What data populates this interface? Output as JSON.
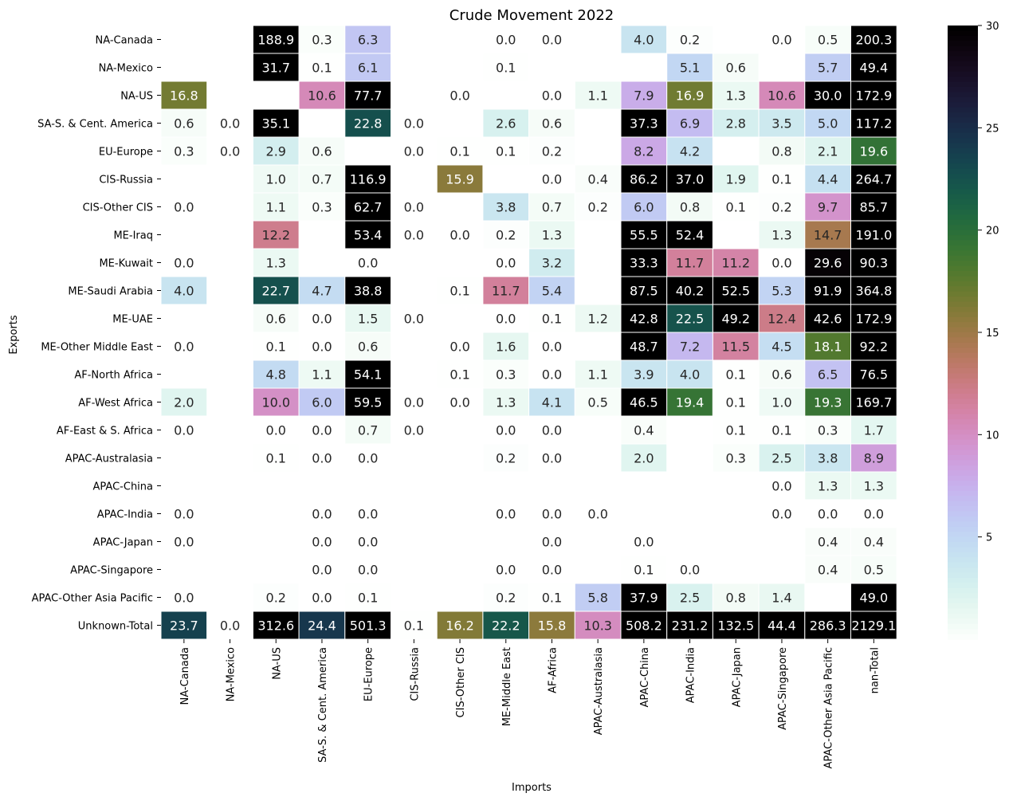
{
  "chart_data": {
    "type": "heatmap",
    "title": "Crude Movement 2022",
    "xlabel": "Imports",
    "ylabel": "Exports",
    "columns": [
      "NA-Canada",
      "NA-Mexico",
      "NA-US",
      "SA-S. & Cent. America",
      "EU-Europe",
      "CIS-Russia",
      "CIS-Other CIS",
      "ME-Middle East",
      "AF-Africa",
      "APAC-Australasia",
      "APAC-China",
      "APAC-India",
      "APAC-Japan",
      "APAC-Singapore",
      "APAC-Other Asia Pacific",
      "nan-Total"
    ],
    "rows": [
      "NA-Canada",
      "NA-Mexico",
      "NA-US",
      "SA-S. & Cent. America",
      "EU-Europe",
      "CIS-Russia",
      "CIS-Other CIS",
      "ME-Iraq",
      "ME-Kuwait",
      "ME-Saudi Arabia",
      "ME-UAE",
      "ME-Other Middle East",
      "AF-North Africa",
      "AF-West Africa",
      "AF-East & S. Africa",
      "APAC-Australasia",
      "APAC-China",
      "APAC-India",
      "APAC-Japan",
      "APAC-Singapore",
      "APAC-Other Asia Pacific",
      "Unknown-Total"
    ],
    "values": [
      [
        null,
        null,
        188.9,
        0.3,
        6.3,
        null,
        null,
        0.0,
        0.0,
        null,
        4.0,
        0.2,
        null,
        0.0,
        0.5,
        200.3
      ],
      [
        null,
        null,
        31.7,
        0.1,
        6.1,
        null,
        null,
        0.1,
        null,
        null,
        null,
        5.1,
        0.6,
        null,
        5.7,
        49.4
      ],
      [
        16.8,
        null,
        null,
        10.6,
        77.7,
        null,
        0.0,
        null,
        0.0,
        1.1,
        7.9,
        16.9,
        1.3,
        10.6,
        30.0,
        172.9
      ],
      [
        0.6,
        0.0,
        35.1,
        null,
        22.8,
        0.0,
        null,
        2.6,
        0.6,
        null,
        37.3,
        6.9,
        2.8,
        3.5,
        5.0,
        117.2
      ],
      [
        0.3,
        0.0,
        2.9,
        0.6,
        null,
        0.0,
        0.1,
        0.1,
        0.2,
        null,
        8.2,
        4.2,
        null,
        0.8,
        2.1,
        19.6
      ],
      [
        null,
        null,
        1.0,
        0.7,
        116.9,
        null,
        15.9,
        null,
        0.0,
        0.4,
        86.2,
        37.0,
        1.9,
        0.1,
        4.4,
        264.7
      ],
      [
        0.0,
        null,
        1.1,
        0.3,
        62.7,
        0.0,
        null,
        3.8,
        0.7,
        0.2,
        6.0,
        0.8,
        0.1,
        0.2,
        9.7,
        85.7
      ],
      [
        null,
        null,
        12.2,
        null,
        53.4,
        0.0,
        0.0,
        0.2,
        1.3,
        null,
        55.5,
        52.4,
        null,
        1.3,
        14.7,
        191.0
      ],
      [
        0.0,
        null,
        1.3,
        null,
        0.0,
        null,
        null,
        0.0,
        3.2,
        null,
        33.3,
        11.7,
        11.2,
        0.0,
        29.6,
        90.3
      ],
      [
        4.0,
        null,
        22.7,
        4.7,
        38.8,
        null,
        0.1,
        11.7,
        5.4,
        null,
        87.5,
        40.2,
        52.5,
        5.3,
        91.9,
        364.8
      ],
      [
        null,
        null,
        0.6,
        0.0,
        1.5,
        0.0,
        null,
        0.0,
        0.1,
        1.2,
        42.8,
        22.5,
        49.2,
        12.4,
        42.6,
        172.9
      ],
      [
        0.0,
        null,
        0.1,
        0.0,
        0.6,
        null,
        0.0,
        1.6,
        0.0,
        null,
        48.7,
        7.2,
        11.5,
        4.5,
        18.1,
        92.2
      ],
      [
        null,
        null,
        4.8,
        1.1,
        54.1,
        null,
        0.1,
        0.3,
        0.0,
        1.1,
        3.9,
        4.0,
        0.1,
        0.6,
        6.5,
        76.5
      ],
      [
        2.0,
        null,
        10.0,
        6.0,
        59.5,
        0.0,
        0.0,
        1.3,
        4.1,
        0.5,
        46.5,
        19.4,
        0.1,
        1.0,
        19.3,
        169.7
      ],
      [
        0.0,
        null,
        0.0,
        0.0,
        0.7,
        0.0,
        null,
        0.0,
        0.0,
        null,
        0.4,
        null,
        0.1,
        0.1,
        0.3,
        1.7
      ],
      [
        null,
        null,
        0.1,
        0.0,
        0.0,
        null,
        null,
        0.2,
        0.0,
        null,
        2.0,
        null,
        0.3,
        2.5,
        3.8,
        8.9
      ],
      [
        null,
        null,
        null,
        null,
        null,
        null,
        null,
        null,
        null,
        null,
        null,
        null,
        null,
        0.0,
        1.3,
        1.3
      ],
      [
        0.0,
        null,
        null,
        0.0,
        0.0,
        null,
        null,
        0.0,
        0.0,
        0.0,
        null,
        null,
        null,
        0.0,
        0.0,
        0.0
      ],
      [
        0.0,
        null,
        null,
        0.0,
        0.0,
        null,
        null,
        null,
        0.0,
        null,
        0.0,
        null,
        null,
        null,
        0.4,
        0.4
      ],
      [
        null,
        null,
        null,
        0.0,
        0.0,
        null,
        null,
        0.0,
        0.0,
        null,
        0.1,
        0.0,
        null,
        null,
        0.4,
        0.5
      ],
      [
        0.0,
        null,
        0.2,
        0.0,
        0.1,
        null,
        null,
        0.2,
        0.1,
        5.8,
        37.9,
        2.5,
        0.8,
        1.4,
        null,
        49.0
      ],
      [
        23.7,
        0.0,
        312.6,
        24.4,
        501.3,
        0.1,
        16.2,
        22.2,
        15.8,
        10.3,
        508.2,
        231.2,
        132.5,
        44.4,
        286.3,
        2129.1
      ]
    ],
    "colorbar": {
      "colormap": "cubehelix_r",
      "vmin": 0,
      "vmax": 30,
      "ticks": [
        5,
        10,
        15,
        20,
        25,
        30
      ]
    }
  }
}
